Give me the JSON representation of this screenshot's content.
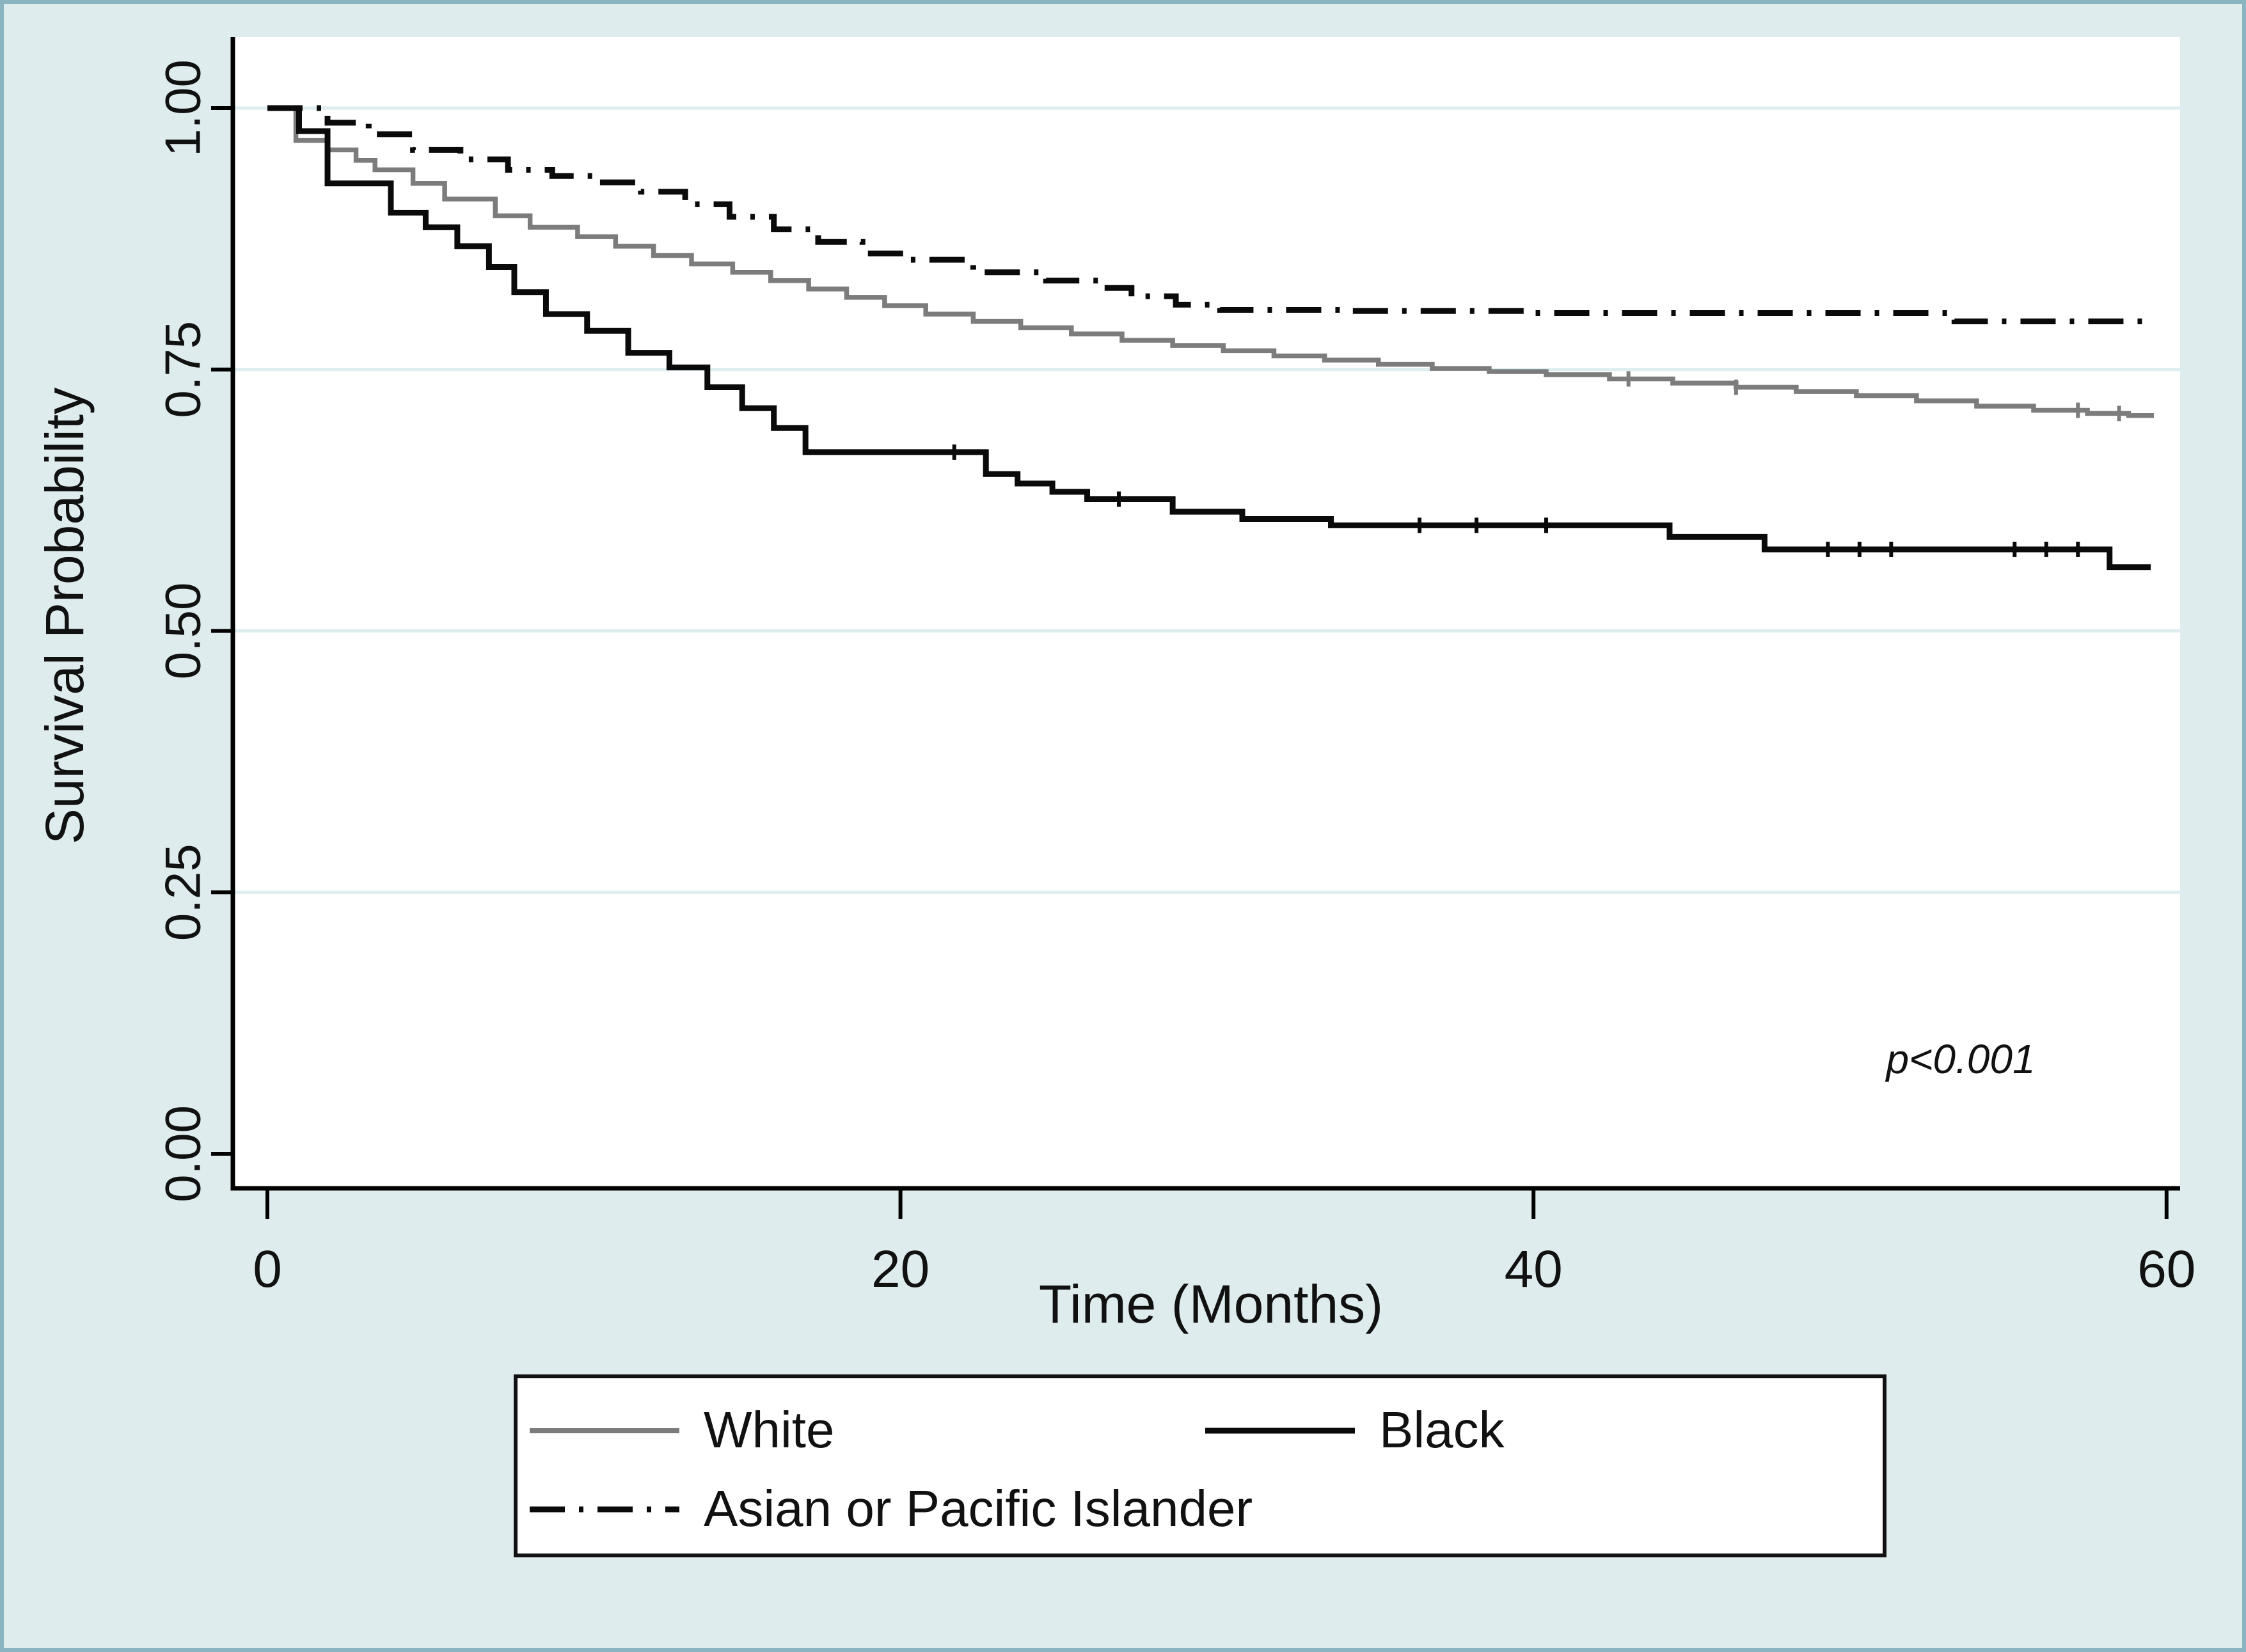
{
  "figure": {
    "kind": "kaplan-meier-survival-plot",
    "title": ""
  },
  "colors": {
    "background": "#dfecee",
    "frame": "#8ab5c0",
    "plot_background": "#ffffff",
    "gridline": "#ddedf0",
    "axis": "#000000",
    "text": "#111111",
    "series_white": "#7c7c7c",
    "series_black": "#0a0a0a",
    "series_asian": "#0a0a0a"
  },
  "chart_data": {
    "type": "line",
    "subtype": "step-survival-curves",
    "title": "",
    "xlabel": "Time (Months)",
    "ylabel": "Survival Probability",
    "annotation": "p<0.001",
    "xlim": [
      0,
      60
    ],
    "ylim": [
      0.0,
      1.0
    ],
    "grid": "horizontal",
    "legend_position": "bottom",
    "xticks": [
      {
        "value": 0,
        "label": "0"
      },
      {
        "value": 20,
        "label": "20"
      },
      {
        "value": 40,
        "label": "40"
      },
      {
        "value": 60,
        "label": "60"
      }
    ],
    "yticks": [
      {
        "value": 0.0,
        "label": "0.00"
      },
      {
        "value": 0.25,
        "label": "0.25"
      },
      {
        "value": 0.5,
        "label": "0.50"
      },
      {
        "value": 0.75,
        "label": "0.75"
      },
      {
        "value": 1.0,
        "label": "1.00"
      }
    ],
    "series": [
      {
        "name": "White",
        "style": "solid",
        "color_key": "series_white",
        "stroke_width": 7.5,
        "end_month": 59.6,
        "points": [
          [
            0,
            1.0
          ],
          [
            0.9,
            0.969
          ],
          [
            1.9,
            0.96
          ],
          [
            2.8,
            0.95
          ],
          [
            3.4,
            0.941
          ],
          [
            4.6,
            0.928
          ],
          [
            5.6,
            0.913
          ],
          [
            7.2,
            0.897
          ],
          [
            8.3,
            0.886
          ],
          [
            9.8,
            0.877
          ],
          [
            11.0,
            0.868
          ],
          [
            12.2,
            0.859
          ],
          [
            13.4,
            0.851
          ],
          [
            14.7,
            0.843
          ],
          [
            15.9,
            0.835
          ],
          [
            17.1,
            0.827
          ],
          [
            18.3,
            0.819
          ],
          [
            19.5,
            0.811
          ],
          [
            20.8,
            0.803
          ],
          [
            22.3,
            0.796
          ],
          [
            23.8,
            0.79
          ],
          [
            25.4,
            0.784
          ],
          [
            27.0,
            0.778
          ],
          [
            28.6,
            0.773
          ],
          [
            30.2,
            0.768
          ],
          [
            31.8,
            0.763
          ],
          [
            33.4,
            0.759
          ],
          [
            35.1,
            0.755
          ],
          [
            36.8,
            0.751
          ],
          [
            38.6,
            0.748
          ],
          [
            40.4,
            0.745
          ],
          [
            42.4,
            0.741
          ],
          [
            44.4,
            0.737
          ],
          [
            46.4,
            0.733
          ],
          [
            48.3,
            0.729
          ],
          [
            50.2,
            0.725
          ],
          [
            52.1,
            0.72
          ],
          [
            54.0,
            0.715
          ],
          [
            55.8,
            0.711
          ],
          [
            57.5,
            0.708
          ],
          [
            58.8,
            0.706
          ]
        ],
        "censor_marks": [
          43.0,
          46.4,
          57.2,
          58.5
        ]
      },
      {
        "name": "Black",
        "style": "solid",
        "color_key": "series_black",
        "stroke_width": 9,
        "end_month": 59.5,
        "points": [
          [
            0,
            1.0
          ],
          [
            1.0,
            0.978
          ],
          [
            1.9,
            0.928
          ],
          [
            3.9,
            0.9
          ],
          [
            5.0,
            0.886
          ],
          [
            6.0,
            0.868
          ],
          [
            7.0,
            0.848
          ],
          [
            7.8,
            0.824
          ],
          [
            8.8,
            0.803
          ],
          [
            10.1,
            0.787
          ],
          [
            11.4,
            0.766
          ],
          [
            12.7,
            0.752
          ],
          [
            13.9,
            0.733
          ],
          [
            15.0,
            0.713
          ],
          [
            16.0,
            0.694
          ],
          [
            17.0,
            0.671
          ],
          [
            22.7,
            0.65
          ],
          [
            23.7,
            0.641
          ],
          [
            24.8,
            0.633
          ],
          [
            25.9,
            0.626
          ],
          [
            28.6,
            0.614
          ],
          [
            30.8,
            0.607
          ],
          [
            33.6,
            0.601
          ],
          [
            44.3,
            0.59
          ],
          [
            47.3,
            0.578
          ],
          [
            58.2,
            0.561
          ]
        ],
        "censor_marks": [
          21.7,
          26.9,
          36.4,
          38.2,
          40.4,
          49.3,
          50.3,
          51.3,
          55.2,
          56.2,
          57.2
        ]
      },
      {
        "name": "Asian or Pacific Islander",
        "style": "dashdot",
        "color_key": "series_asian",
        "stroke_width": 9,
        "end_month": 59.3,
        "points": [
          [
            0,
            1.0
          ],
          [
            1.9,
            0.986
          ],
          [
            3.2,
            0.975
          ],
          [
            4.6,
            0.96
          ],
          [
            6.1,
            0.951
          ],
          [
            7.6,
            0.941
          ],
          [
            9.0,
            0.935
          ],
          [
            10.3,
            0.929
          ],
          [
            11.8,
            0.92
          ],
          [
            13.2,
            0.908
          ],
          [
            14.6,
            0.896
          ],
          [
            16.0,
            0.884
          ],
          [
            17.4,
            0.872
          ],
          [
            18.8,
            0.861
          ],
          [
            20.2,
            0.855
          ],
          [
            22.3,
            0.843
          ],
          [
            24.6,
            0.835
          ],
          [
            26.4,
            0.828
          ],
          [
            27.3,
            0.82
          ],
          [
            28.7,
            0.812
          ],
          [
            30.1,
            0.807
          ],
          [
            34.0,
            0.806
          ],
          [
            40.0,
            0.804
          ],
          [
            53.3,
            0.796
          ]
        ],
        "censor_marks": []
      }
    ]
  }
}
